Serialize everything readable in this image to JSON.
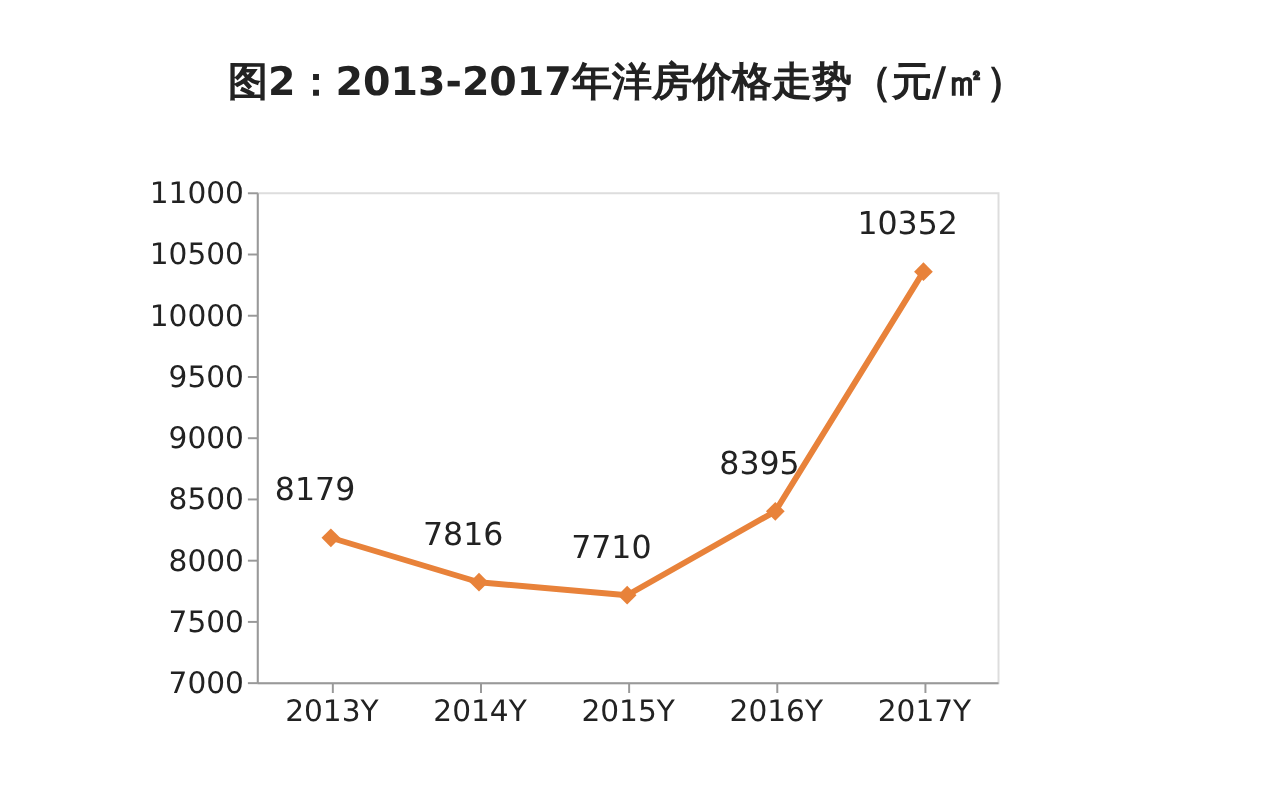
{
  "chart_data": {
    "type": "line",
    "title": "图2：2013-2017年洋房价格走势（元/㎡）",
    "categories": [
      "2013Y",
      "2014Y",
      "2015Y",
      "2016Y",
      "2017Y"
    ],
    "series": [
      {
        "color": "#e8823a",
        "values": [
          8179,
          7816,
          7710,
          8395,
          10352
        ]
      }
    ],
    "ylim": [
      7000,
      11000
    ],
    "yticks": [
      7000,
      7500,
      8000,
      8500,
      9000,
      9500,
      10000,
      10500,
      11000
    ],
    "grid": false,
    "marker": "diamond",
    "line_style": "solid",
    "data_labels": true
  }
}
